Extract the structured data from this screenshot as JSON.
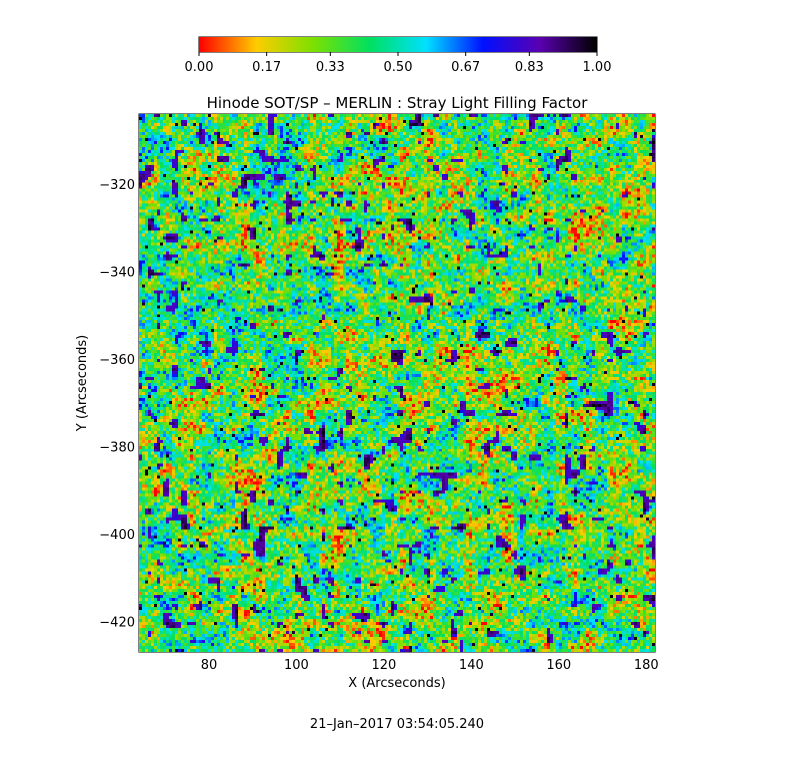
{
  "chart_data": {
    "type": "heatmap",
    "title": "Hinode SOT/SP – MERLIN : Stray Light Filling Factor",
    "xlabel": "X (Arcseconds)",
    "ylabel": "Y (Arcseconds)",
    "xlim": [
      64,
      182
    ],
    "ylim": [
      -427,
      -304
    ],
    "x_ticks": [
      80,
      100,
      120,
      140,
      160,
      180
    ],
    "y_ticks": [
      -320,
      -340,
      -360,
      -380,
      -400,
      -420
    ],
    "x_tick_labels": [
      "80",
      "100",
      "120",
      "140",
      "160",
      "180"
    ],
    "y_tick_labels": [
      "−320",
      "−340",
      "−360",
      "−380",
      "−400",
      "−420"
    ],
    "value_range": [
      0.0,
      1.0
    ],
    "colorbar": {
      "ticks": [
        0.0,
        0.17,
        0.33,
        0.5,
        0.67,
        0.83,
        1.0
      ],
      "tick_labels": [
        "0.00",
        "0.17",
        "0.33",
        "0.50",
        "0.67",
        "0.83",
        "1.00"
      ],
      "colormap": "rainbow (red → yellow → green → cyan → blue → purple → black)"
    },
    "value_distribution": "dense granular field, mostly 0.15–0.55 with scattered blue patches near 0.8–0.9",
    "timestamp": "21–Jan–2017 03:54:05.240"
  },
  "colors": {
    "stops": [
      "#ff0000",
      "#ffcc00",
      "#7de000",
      "#00e060",
      "#00e0ff",
      "#0010ff",
      "#5a00b0",
      "#000000"
    ]
  }
}
